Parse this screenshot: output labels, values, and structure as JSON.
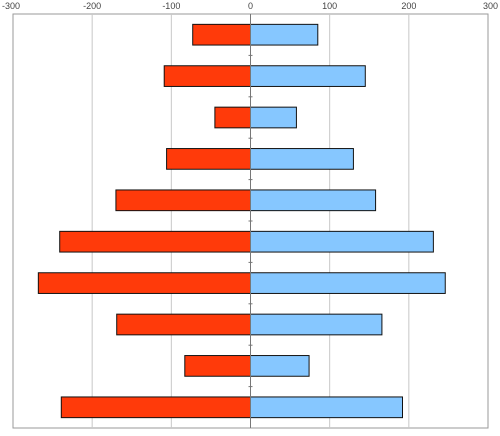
{
  "chart_data": {
    "type": "bar",
    "orientation": "horizontal",
    "stacking": "diverging",
    "title": "",
    "xlabel": "",
    "ylabel": "",
    "xlim": [
      -300,
      300
    ],
    "x_ticks": [
      -300,
      -200,
      -100,
      0,
      100,
      200,
      300
    ],
    "tick_labels": [
      "-300",
      "-200",
      "-100",
      "0",
      "100",
      "200",
      "300"
    ],
    "tick_position": "top",
    "grid": true,
    "legend": "none",
    "category_count": 10,
    "series": [
      {
        "color": "#ff3a0a",
        "values": [
          -73,
          -109,
          -45,
          -106,
          -170,
          -241,
          -268,
          -169,
          -83,
          -239
        ]
      },
      {
        "color": "#86c7ff",
        "values": [
          85,
          145,
          58,
          130,
          158,
          231,
          246,
          166,
          74,
          192
        ]
      }
    ],
    "colors": {
      "grid": "#c8c8c8",
      "frame": "#9a9a9a",
      "axis": "#777777",
      "bar_stroke": "#111111"
    }
  }
}
